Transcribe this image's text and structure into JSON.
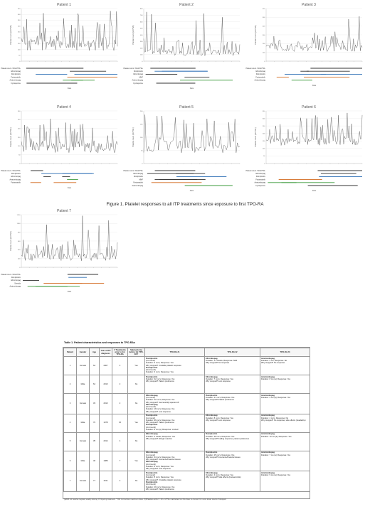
{
  "figure_caption": "Figure 1. Platelet responses to all ITP treatments since exposure to first TPO-RA",
  "chart_data": [
    {
      "type": "line",
      "title": "Patient 1",
      "ylabel": "Platelet count (x10^9/L)",
      "xlabel": "Date",
      "ylim": [
        0,
        450
      ],
      "yticks": [
        "0",
        "50",
        "100",
        "150",
        "200",
        "250",
        "300",
        "350",
        "400",
        "450"
      ],
      "seed": 11,
      "base": 90,
      "amp": 330,
      "pts": 110,
      "timeline": [
        {
          "label": "Platelet count <30x10^9/L",
          "y": 0,
          "color": "#333"
        },
        {
          "label": "Eltrombopag",
          "y": 1,
          "color": "#333"
        },
        {
          "label": "Romiplostim",
          "y": 2,
          "color": "#2e6fb5"
        },
        {
          "label": "Fostamatinib",
          "y": 3,
          "color": "#d2691e"
        },
        {
          "label": "Avatrombopag",
          "y": 4,
          "color": "#3a9a3a"
        },
        {
          "label": "Cyclosporine",
          "y": 5,
          "color": "#333"
        }
      ]
    },
    {
      "type": "line",
      "title": "Patient 2",
      "ylabel": "Platelet count (x10^9/L)",
      "xlabel": "Date",
      "ylim": [
        0,
        800
      ],
      "yticks": [
        "0",
        "100",
        "200",
        "300",
        "400",
        "500",
        "600",
        "700",
        "800"
      ],
      "seed": 23,
      "base": 80,
      "amp": 280,
      "pts": 100,
      "timeline": [
        {
          "label": "Platelet count <30x10^9/L",
          "y": 0,
          "color": "#333"
        },
        {
          "label": "Romiplostim",
          "y": 1,
          "color": "#2e6fb5"
        },
        {
          "label": "Eltrombopag",
          "y": 2,
          "color": "#333"
        },
        {
          "label": "MMF",
          "y": 3,
          "color": "#333"
        },
        {
          "label": "Avatrombopag",
          "y": 4,
          "color": "#3a9a3a"
        },
        {
          "label": "Cyclosporine",
          "y": 5,
          "color": "#333"
        }
      ]
    },
    {
      "type": "line",
      "title": "Patient 3",
      "ylabel": "Platelet count (x10^9/L)",
      "xlabel": "Date",
      "ylim": [
        0,
        600
      ],
      "yticks": [
        "0",
        "100",
        "200",
        "300",
        "400",
        "500",
        "600"
      ],
      "seed": 37,
      "base": 110,
      "amp": 260,
      "pts": 100,
      "timeline": [
        {
          "label": "Platelet count <30x10^9/L",
          "y": 0,
          "color": "#333"
        },
        {
          "label": "Eltrombopag",
          "y": 1,
          "color": "#333"
        },
        {
          "label": "Romiplostim",
          "y": 2,
          "color": "#2e6fb5"
        },
        {
          "label": "Fostamatinib",
          "y": 3,
          "color": "#d2691e"
        },
        {
          "label": "Avatrombopag",
          "y": 4,
          "color": "#3a9a3a"
        }
      ]
    },
    {
      "type": "line",
      "title": "Patient 4",
      "ylabel": "Platelet count (x10^9/L)",
      "xlabel": "Date",
      "ylim": [
        0,
        300
      ],
      "yticks": [
        "0",
        "50",
        "100",
        "150",
        "200",
        "250",
        "300"
      ],
      "seed": 41,
      "base": 60,
      "amp": 190,
      "pts": 120,
      "timeline": [
        {
          "label": "Platelet count <30x10^9/L",
          "y": 0,
          "color": "#333"
        },
        {
          "label": "Romiplostim",
          "y": 1,
          "color": "#2e6fb5"
        },
        {
          "label": "Eltrombopag",
          "y": 2,
          "color": "#333"
        },
        {
          "label": "Avatrombopag",
          "y": 3,
          "color": "#3a9a3a"
        },
        {
          "label": "Fostamatinib",
          "y": 4,
          "color": "#d2691e"
        }
      ]
    },
    {
      "type": "line",
      "title": "Patient 5",
      "ylabel": "Platelet count (x10^9/L)",
      "xlabel": "Date",
      "ylim": [
        0,
        200
      ],
      "yticks": [
        "0",
        "50",
        "100",
        "150",
        "200"
      ],
      "seed": 53,
      "base": 40,
      "amp": 150,
      "pts": 80,
      "timeline": [
        {
          "label": "Platelet count <30x10^9/L",
          "y": 0,
          "color": "#333"
        },
        {
          "label": "Eltrombopag",
          "y": 1,
          "color": "#333"
        },
        {
          "label": "Romiplostim",
          "y": 2,
          "color": "#2e6fb5"
        },
        {
          "label": "MMF",
          "y": 3,
          "color": "#333"
        },
        {
          "label": "Fostamatinib",
          "y": 4,
          "color": "#d2691e"
        },
        {
          "label": "Avatrombopag",
          "y": 5,
          "color": "#3a9a3a"
        }
      ]
    },
    {
      "type": "line",
      "title": "Patient 6",
      "ylabel": "Platelet count (x10^9/L)",
      "xlabel": "Date",
      "ylim": [
        0,
        350
      ],
      "yticks": [
        "0",
        "50",
        "100",
        "150",
        "200",
        "250",
        "300",
        "350"
      ],
      "seed": 67,
      "base": 120,
      "amp": 150,
      "pts": 110,
      "timeline": [
        {
          "label": "Platelet count <30x10^9/L",
          "y": 0,
          "color": "#333"
        },
        {
          "label": "Eltrombopag",
          "y": 1,
          "color": "#333"
        },
        {
          "label": "Romiplostim",
          "y": 2,
          "color": "#2e6fb5"
        },
        {
          "label": "Fostamatinib",
          "y": 3,
          "color": "#d2691e"
        },
        {
          "label": "Avatrombopag",
          "y": 4,
          "color": "#3a9a3a"
        },
        {
          "label": "Cyclosporine",
          "y": 5,
          "color": "#333"
        }
      ]
    },
    {
      "type": "line",
      "title": "Patient 7",
      "ylabel": "Platelet count (x10^9/L)",
      "xlabel": "Date",
      "ylim": [
        0,
        1200
      ],
      "yticks": [
        "0",
        "200",
        "400",
        "600",
        "800",
        "1000",
        "1200"
      ],
      "seed": 79,
      "base": 150,
      "amp": 500,
      "pts": 100,
      "timeline": [
        {
          "label": "Platelet count <30x10^9/L",
          "y": 0,
          "color": "#333"
        },
        {
          "label": "Romiplostim",
          "y": 1,
          "color": "#2e6fb5"
        },
        {
          "label": "Eltrombopag",
          "y": 2,
          "color": "#333"
        },
        {
          "label": "Steroids",
          "y": 3,
          "color": "#d2691e"
        },
        {
          "label": "Avatrombopag",
          "y": 4,
          "color": "#3a9a3a"
        }
      ]
    }
  ],
  "table": {
    "title": "Table 1. Patient characteristics and responses to TPO-RAs",
    "headers": [
      "Patient",
      "Gender",
      "Age",
      "Year of ITP diagnosis",
      "# Treatments prior to 1st TPO-RA",
      "Splenectomy before 1st TPO-RA?",
      "TPO-RA #1",
      "TPO-RA #2",
      "TPO-RA #3"
    ],
    "rows": [
      {
        "patient": "1",
        "gender": "Female",
        "age": "64",
        "year": "2007",
        "prior": "3",
        "splen": "Yes",
        "t1": [
          {
            "drug": "Romiplostim",
            "lines": [
              "(1st round)",
              "Duration: 6 mo's; Response: Yes",
              "Why stopped? Unstable platelet response"
            ]
          },
          {
            "drug": "Romiplostim",
            "lines": [
              "(2nd round)",
              "Duration: 3 mo's; Response: Yes"
            ]
          }
        ],
        "t2": [
          {
            "drug": "Eltrombopag",
            "lines": [
              "Duration: 1.5 weeks; Response: NoR",
              "Why stopped? No response"
            ]
          }
        ],
        "t3": [
          {
            "drug": "Avatrombopag",
            "lines": [
              "Duration: 5 mo; Response: No",
              "Why stopped? No response"
            ]
          }
        ]
      },
      {
        "patient": "2",
        "gender": "Male",
        "age": "64",
        "year": "2013",
        "prior": "2",
        "splen": "No",
        "t1": [
          {
            "drug": "Romiplostim",
            "lines": [
              "Duration: 32 mo's; Response: Yes",
              "Why stopped? Patient preference"
            ]
          }
        ],
        "t2": [
          {
            "drug": "Eltrombopag",
            "lines": [
              "Duration: 7 mo's; Response: Yes",
              "Why stopped? Lost response"
            ]
          }
        ],
        "t3": [
          {
            "drug": "Avatrombopag",
            "lines": [
              "Duration: 8 mo (a); Response: Yes"
            ]
          }
        ]
      },
      {
        "patient": "3",
        "gender": "Female",
        "age": "33",
        "year": "2013",
        "prior": "2",
        "splen": "No",
        "t1": [
          {
            "drug": "Eltrombopag",
            "lines": [
              "(1st round)",
              "Duration: 22 mo's; Response: Yes",
              "Why stopped? Successfully tapered off"
            ]
          },
          {
            "drug": "Eltrombopag",
            "lines": [
              "(2nd round)",
              "Duration: 18 mo's; Response: Yes",
              "Why stopped? Lost response"
            ]
          }
        ],
        "t2": [
          {
            "drug": "Romiplostim",
            "lines": [
              "Duration: 27 mo's; Response: Yes",
              "Why stopped? Patient preference"
            ]
          }
        ],
        "t3": [
          {
            "drug": "Avatrombopag",
            "lines": [
              "Duration: 9 mo (a); Response: Yes"
            ]
          }
        ]
      },
      {
        "patient": "4",
        "gender": "Male",
        "age": "70",
        "year": "1978",
        "prior": "15",
        "splen": "Yes",
        "t1": [
          {
            "drug": "Romiplostim",
            "lines": [
              "(1st round)",
              "Duration: 96 mo's; Response: Yes",
              "Why stopped? Patient preference"
            ]
          },
          {
            "drug": "Romiplostim",
            "lines": [
              "(2nd round)",
              "Duration: 8 mo (a); Response: Limited"
            ]
          }
        ],
        "t2": [
          {
            "drug": "Eltrombopag",
            "lines": [
              "Duration: 8 mo's; Response: Yes",
              "Why stopped? Lost response"
            ]
          }
        ],
        "t3": [
          {
            "drug": "Avatrombopag",
            "lines": [
              "Duration: 2 mo's; Response: No",
              "Why stopped? No response, side effects (headache)"
            ]
          }
        ]
      },
      {
        "patient": "5",
        "gender": "Female",
        "age": "35",
        "year": "2014",
        "prior": "4",
        "splen": "No",
        "t1": [
          {
            "drug": "Eltrombopag",
            "lines": [
              "Duration: 2 weeks; Response: Yes",
              "Why stopped? Allergic reaction"
            ]
          }
        ],
        "t2": [
          {
            "drug": "Romiplostim",
            "lines": [
              "Duration: 49 mo's; Response: Yes",
              "Why stopped? Fading response, patient preference"
            ]
          }
        ],
        "t3": [
          {
            "drug": "Avatrombopag",
            "lines": [
              "Duration: 10 mo (a); Response: Yes"
            ]
          }
        ]
      },
      {
        "patient": "6",
        "gender": "Male",
        "age": "46",
        "year": "1989",
        "prior": "7",
        "splen": "Yes",
        "t1": [
          {
            "drug": "Eltrombopag",
            "lines": [
              "(1st round)",
              "Duration: 34 mo's; Response: Yes",
              "Why stopped? Insurance/financial issues"
            ]
          },
          {
            "drug": "Eltrombopag",
            "lines": [
              "(2nd round)",
              "Duration: 8 mo's; Response: Yes",
              "Why stopped? Lost response"
            ]
          }
        ],
        "t2": [
          {
            "drug": "Romiplostim",
            "lines": [
              "Duration: 25 mo's; Response: Yes",
              "Why stopped? Insurance/financial issues"
            ]
          }
        ],
        "t3": [
          {
            "drug": "Avatrombopag",
            "lines": [
              "Duration: 7 mo (a); Response: Yes"
            ]
          }
        ]
      },
      {
        "patient": "7",
        "gender": "Female",
        "age": "77",
        "year": "2011",
        "prior": "2",
        "splen": "No",
        "t1": [
          {
            "drug": "Romiplostim",
            "lines": [
              "(1st round)",
              "Duration: 8 mo's; Response: Yes",
              "Why stopped? Unstable platelet response"
            ]
          },
          {
            "drug": "Romiplostim",
            "lines": [
              "(2nd round)",
              "Duration: 49 mo's; Response: Yes",
              "Why stopped? Patient preference"
            ]
          }
        ],
        "t2": [
          {
            "drug": "Eltrombopag",
            "lines": [
              "Duration: 4 mo's; Response: Yes",
              "Why stopped? Side effects (transaminitis)"
            ]
          }
        ],
        "t3": [
          {
            "drug": "Avatrombopag",
            "lines": [
              "Duration: 9 mo (a); Response: Yes"
            ]
          }
        ]
      }
    ],
    "footnote": "(a)Did not receive regular, weekly dosing. # Ongoing treatment. ^ Did not receive maximum dose. (b)Platelets either > 20 x 10^9/L maintained on this dose to concern for more lower counts if stopped."
  }
}
